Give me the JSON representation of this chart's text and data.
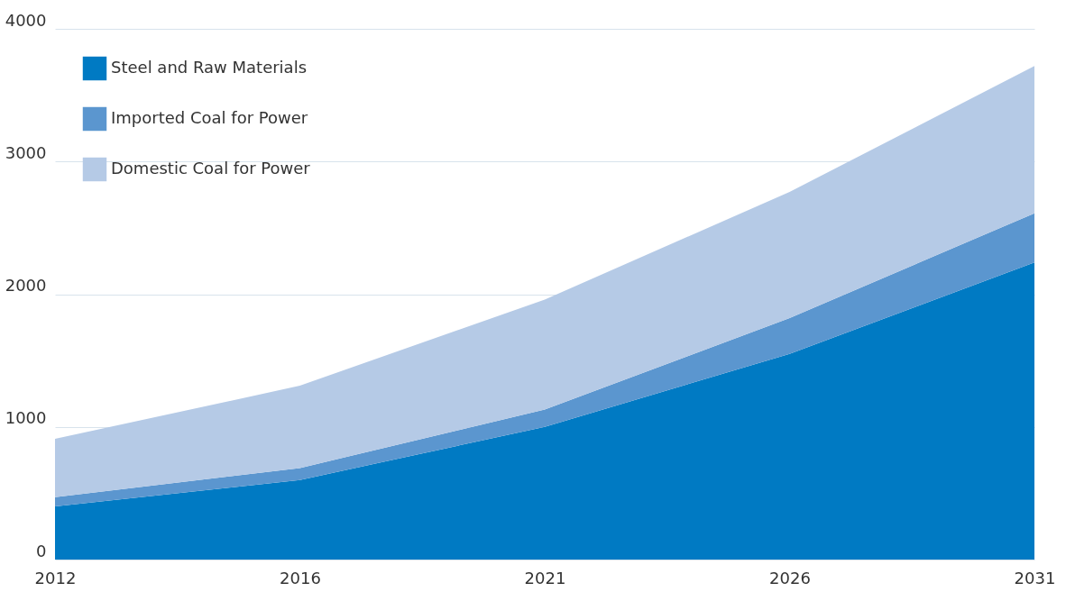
{
  "chart_data": {
    "type": "area",
    "stacked": true,
    "categories": [
      "2012",
      "2016",
      "2021",
      "2026",
      "2031"
    ],
    "series": [
      {
        "name": "Steel and Raw Materials",
        "color": "#007ac3",
        "values": [
          400,
          600,
          1000,
          1550,
          2240
        ]
      },
      {
        "name": "Imported Coal for Power",
        "color": "#5b96cf",
        "values": [
          70,
          90,
          130,
          270,
          370
        ]
      },
      {
        "name": "Domestic Coal for Power",
        "color": "#b5cae6",
        "values": [
          440,
          620,
          830,
          950,
          1110
        ]
      }
    ],
    "ylim": [
      0,
      4000
    ],
    "yticks": [
      0,
      1000,
      2000,
      3000,
      4000
    ],
    "grid": "y",
    "legend": "top left"
  }
}
